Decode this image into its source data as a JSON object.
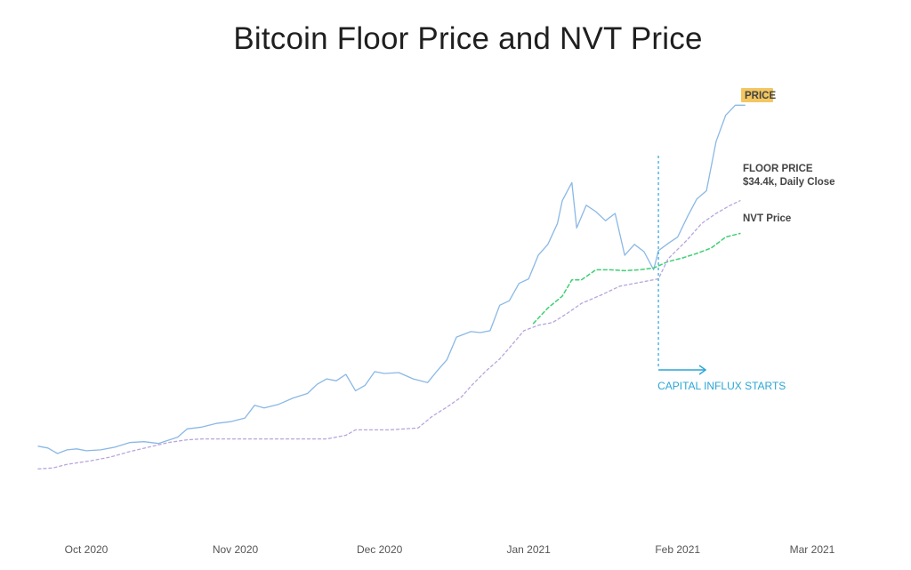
{
  "chart_data": {
    "type": "line",
    "title": "Bitcoin Floor Price and NVT Price",
    "x_ticks": [
      "Oct 2020",
      "Nov 2020",
      "Dec 2020",
      "Jan 2021",
      "Feb 2021",
      "Mar 2021"
    ],
    "x_range": [
      "2020-09-21",
      "2021-03-05"
    ],
    "y_axis_shown": false,
    "grid": false,
    "legend": "direct labels at right end of each series",
    "labels": {
      "price": "PRICE",
      "floor_line1": "FLOOR PRICE",
      "floor_line2": "$34.4k, Daily Close",
      "nvt": "NVT Price"
    },
    "annotation": {
      "text": "CAPITAL INFLUX STARTS",
      "date": "2021-01-28"
    },
    "colors": {
      "price": "#8ab8e6",
      "floor": "#3fcf73",
      "nvt": "#b7a6dd",
      "annotation": "#2aa6d6",
      "price_badge": "#f3c660"
    },
    "series": [
      {
        "name": "PRICE",
        "style": "solid",
        "x": [
          "2020-09-21",
          "2020-09-23",
          "2020-09-25",
          "2020-09-27",
          "2020-09-29",
          "2020-10-01",
          "2020-10-04",
          "2020-10-07",
          "2020-10-10",
          "2020-10-13",
          "2020-10-16",
          "2020-10-20",
          "2020-10-22",
          "2020-10-25",
          "2020-10-28",
          "2020-10-31",
          "2020-11-03",
          "2020-11-05",
          "2020-11-07",
          "2020-11-10",
          "2020-11-13",
          "2020-11-16",
          "2020-11-18",
          "2020-11-20",
          "2020-11-22",
          "2020-11-24",
          "2020-11-26",
          "2020-11-28",
          "2020-11-30",
          "2020-12-02",
          "2020-12-05",
          "2020-12-08",
          "2020-12-11",
          "2020-12-13",
          "2020-12-15",
          "2020-12-17",
          "2020-12-20",
          "2020-12-22",
          "2020-12-24",
          "2020-12-26",
          "2020-12-28",
          "2020-12-30",
          "2021-01-01",
          "2021-01-03",
          "2021-01-05",
          "2021-01-07",
          "2021-01-08",
          "2021-01-10",
          "2021-01-11",
          "2021-01-13",
          "2021-01-15",
          "2021-01-17",
          "2021-01-19",
          "2021-01-21",
          "2021-01-23",
          "2021-01-25",
          "2021-01-27",
          "2021-01-28",
          "2021-01-30",
          "2021-02-01",
          "2021-02-03",
          "2021-02-05",
          "2021-02-07",
          "2021-02-09",
          "2021-02-11",
          "2021-02-13",
          "2021-02-15"
        ],
        "values": [
          11.0,
          10.8,
          10.2,
          10.6,
          10.7,
          10.5,
          10.6,
          10.9,
          11.4,
          11.5,
          11.3,
          12.0,
          12.9,
          13.1,
          13.5,
          13.7,
          14.1,
          15.5,
          15.2,
          15.6,
          16.3,
          16.8,
          17.8,
          18.4,
          18.2,
          18.9,
          17.1,
          17.7,
          19.2,
          19.0,
          19.1,
          18.4,
          18.0,
          19.3,
          20.5,
          23.0,
          23.6,
          23.5,
          23.7,
          26.5,
          27.0,
          28.9,
          29.4,
          32.0,
          33.2,
          35.5,
          38.0,
          40.0,
          35.0,
          37.5,
          36.8,
          35.8,
          36.6,
          32.0,
          33.2,
          32.4,
          30.4,
          32.5,
          33.3,
          34.0,
          36.2,
          38.2,
          39.1,
          44.5,
          47.4,
          48.5,
          48.5
        ]
      },
      {
        "name": "FLOOR PRICE",
        "style": "dashed",
        "x": [
          "2021-01-02",
          "2021-01-05",
          "2021-01-08",
          "2021-01-10",
          "2021-01-12",
          "2021-01-15",
          "2021-01-18",
          "2021-01-21",
          "2021-01-24",
          "2021-01-27",
          "2021-01-30",
          "2021-02-02",
          "2021-02-05",
          "2021-02-08",
          "2021-02-11",
          "2021-02-14"
        ],
        "values": [
          24.5,
          26.2,
          27.5,
          29.3,
          29.3,
          30.4,
          30.4,
          30.3,
          30.4,
          30.6,
          31.3,
          31.7,
          32.2,
          32.8,
          34.0,
          34.4
        ]
      },
      {
        "name": "NVT Price",
        "style": "dashed",
        "x": [
          "2020-09-21",
          "2020-09-24",
          "2020-09-27",
          "2020-10-02",
          "2020-10-06",
          "2020-10-10",
          "2020-10-14",
          "2020-10-18",
          "2020-10-22",
          "2020-10-25",
          "2020-11-01",
          "2020-11-10",
          "2020-11-20",
          "2020-11-24",
          "2020-11-26",
          "2020-12-03",
          "2020-12-09",
          "2020-12-12",
          "2020-12-15",
          "2020-12-18",
          "2020-12-20",
          "2020-12-23",
          "2020-12-26",
          "2020-12-28",
          "2020-12-31",
          "2021-01-03",
          "2021-01-06",
          "2021-01-09",
          "2021-01-12",
          "2021-01-16",
          "2021-01-20",
          "2021-01-24",
          "2021-01-28",
          "2021-01-30",
          "2021-02-03",
          "2021-02-06",
          "2021-02-09",
          "2021-02-12",
          "2021-02-14"
        ],
        "values": [
          8.5,
          8.6,
          9.0,
          9.4,
          9.8,
          10.4,
          10.9,
          11.4,
          11.7,
          11.8,
          11.8,
          11.8,
          11.8,
          12.2,
          12.8,
          12.8,
          13.0,
          14.3,
          15.3,
          16.4,
          17.6,
          19.2,
          20.6,
          21.8,
          23.7,
          24.3,
          24.6,
          25.6,
          26.7,
          27.6,
          28.6,
          29.0,
          29.4,
          31.6,
          33.7,
          35.5,
          36.6,
          37.5,
          38.0
        ]
      }
    ]
  }
}
